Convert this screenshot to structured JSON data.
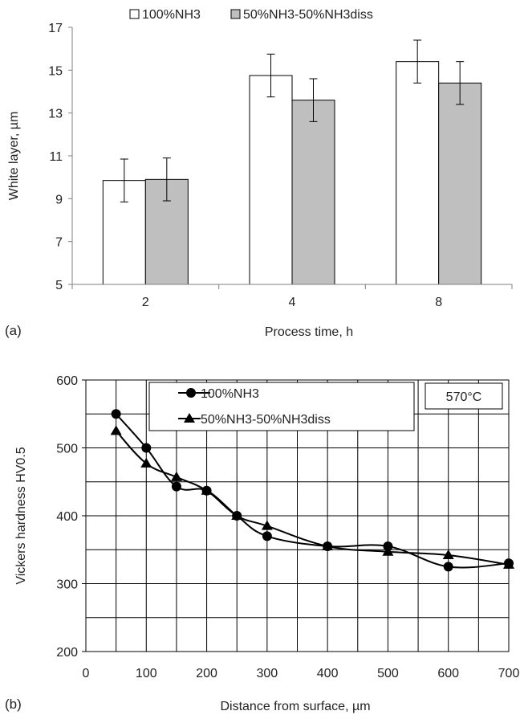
{
  "chart_data": [
    {
      "type": "bar",
      "panel_label": "(a)",
      "categories": [
        "2",
        "4",
        "8"
      ],
      "series": [
        {
          "name": "100%NH3",
          "values": [
            9.85,
            14.75,
            15.4
          ],
          "errors": [
            1.0,
            1.0,
            1.0
          ],
          "color": "#ffffff"
        },
        {
          "name": "50%NH3-50%NH3diss",
          "values": [
            9.9,
            13.6,
            14.4
          ],
          "errors": [
            1.0,
            1.0,
            1.0
          ],
          "color": "#bfbfbf"
        }
      ],
      "xlabel": "Process time, h",
      "ylabel": "White layer, µm",
      "ylim": [
        5,
        17
      ],
      "yticks": [
        5,
        7,
        9,
        11,
        13,
        15,
        17
      ],
      "grid": false,
      "legend": "top"
    },
    {
      "type": "line",
      "panel_label": "(b)",
      "annotation": "570°C",
      "series": [
        {
          "name": "100%NH3",
          "marker": "circle",
          "x": [
            50,
            100,
            150,
            200,
            250,
            300,
            400,
            500,
            600,
            700
          ],
          "y": [
            550,
            500,
            443,
            437,
            400,
            370,
            355,
            355,
            325,
            330
          ]
        },
        {
          "name": "50%NH3-50%NH3diss",
          "marker": "triangle",
          "x": [
            50,
            100,
            150,
            200,
            250,
            300,
            400,
            500,
            600,
            700
          ],
          "y": [
            525,
            477,
            457,
            437,
            400,
            385,
            355,
            347,
            342,
            328
          ]
        }
      ],
      "xlabel": "Distance from surface, µm",
      "ylabel": "Vickers hardness HV0.5",
      "xlim": [
        0,
        700
      ],
      "ylim": [
        200,
        600
      ],
      "xticks": [
        0,
        100,
        200,
        300,
        400,
        500,
        600,
        700
      ],
      "yticks": [
        200,
        300,
        400,
        500,
        600
      ],
      "grid": true,
      "legend": "top"
    }
  ]
}
